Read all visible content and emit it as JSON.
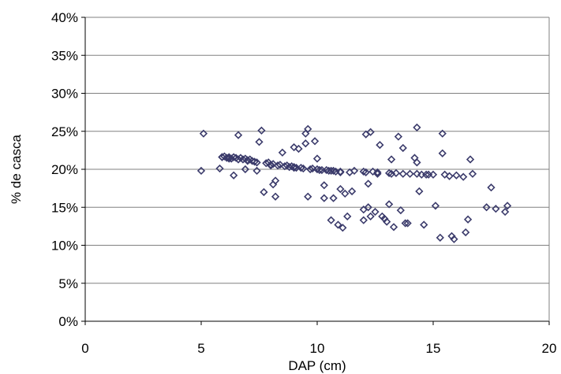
{
  "chart_data": {
    "type": "scatter",
    "title": "",
    "xlabel": "DAP (cm)",
    "ylabel": "% de casca",
    "xlim": [
      0,
      20
    ],
    "ylim": [
      0,
      40
    ],
    "x_ticks": [
      "0",
      "5",
      "10",
      "15",
      "20"
    ],
    "y_ticks": [
      "0%",
      "5%",
      "10%",
      "15%",
      "20%",
      "25%",
      "30%",
      "35%",
      "40%"
    ],
    "grid": true,
    "legend": "none",
    "marker": "diamond-open",
    "marker_color": "#3b3b6b",
    "series": [
      {
        "points": [
          [
            5.0,
            19.8
          ],
          [
            5.1,
            24.7
          ],
          [
            5.8,
            20.1
          ],
          [
            5.9,
            21.6
          ],
          [
            6.0,
            21.7
          ],
          [
            6.1,
            21.5
          ],
          [
            6.2,
            21.6
          ],
          [
            6.3,
            21.4
          ],
          [
            6.4,
            21.6
          ],
          [
            6.4,
            19.2
          ],
          [
            6.5,
            21.5
          ],
          [
            6.6,
            21.3
          ],
          [
            6.6,
            24.5
          ],
          [
            6.7,
            21.5
          ],
          [
            6.8,
            21.3
          ],
          [
            6.9,
            21.4
          ],
          [
            6.9,
            20.0
          ],
          [
            7.0,
            21.2
          ],
          [
            7.1,
            21.3
          ],
          [
            7.2,
            21.1
          ],
          [
            7.3,
            21.0
          ],
          [
            7.4,
            20.9
          ],
          [
            7.4,
            19.8
          ],
          [
            7.5,
            23.6
          ],
          [
            7.6,
            25.1
          ],
          [
            7.7,
            17.0
          ],
          [
            7.8,
            20.8
          ],
          [
            7.9,
            20.9
          ],
          [
            8.0,
            20.6
          ],
          [
            8.1,
            18.0
          ],
          [
            8.1,
            20.7
          ],
          [
            8.2,
            18.5
          ],
          [
            8.2,
            16.4
          ],
          [
            8.3,
            20.5
          ],
          [
            8.4,
            20.6
          ],
          [
            8.5,
            22.2
          ],
          [
            8.6,
            20.4
          ],
          [
            8.7,
            20.5
          ],
          [
            8.8,
            20.3
          ],
          [
            8.9,
            20.4
          ],
          [
            9.0,
            22.9
          ],
          [
            9.0,
            20.3
          ],
          [
            9.1,
            20.2
          ],
          [
            9.2,
            22.7
          ],
          [
            9.3,
            20.2
          ],
          [
            9.4,
            20.1
          ],
          [
            9.5,
            24.7
          ],
          [
            9.5,
            23.4
          ],
          [
            9.6,
            25.3
          ],
          [
            9.6,
            16.4
          ],
          [
            9.7,
            20.0
          ],
          [
            9.8,
            20.1
          ],
          [
            9.9,
            23.7
          ],
          [
            10.0,
            21.4
          ],
          [
            10.0,
            20.0
          ],
          [
            10.2,
            19.9
          ],
          [
            10.3,
            16.2
          ],
          [
            10.3,
            17.9
          ],
          [
            10.4,
            19.9
          ],
          [
            10.5,
            19.8
          ],
          [
            10.6,
            13.3
          ],
          [
            10.7,
            16.2
          ],
          [
            10.7,
            19.8
          ],
          [
            10.8,
            19.7
          ],
          [
            10.9,
            12.7
          ],
          [
            11.0,
            19.7
          ],
          [
            11.0,
            17.4
          ],
          [
            11.1,
            12.3
          ],
          [
            11.2,
            16.8
          ],
          [
            11.3,
            13.8
          ],
          [
            11.4,
            19.6
          ],
          [
            11.5,
            17.1
          ],
          [
            11.6,
            19.8
          ],
          [
            12.0,
            19.7
          ],
          [
            12.0,
            14.7
          ],
          [
            12.0,
            13.3
          ],
          [
            12.1,
            19.6
          ],
          [
            12.1,
            24.6
          ],
          [
            12.2,
            15.0
          ],
          [
            12.2,
            18.1
          ],
          [
            12.3,
            24.9
          ],
          [
            12.3,
            13.8
          ],
          [
            12.4,
            19.7
          ],
          [
            12.5,
            14.4
          ],
          [
            12.6,
            19.6
          ],
          [
            12.6,
            19.4
          ],
          [
            12.7,
            23.2
          ],
          [
            12.8,
            13.8
          ],
          [
            12.9,
            13.5
          ],
          [
            13.0,
            13.1
          ],
          [
            13.1,
            15.4
          ],
          [
            13.1,
            19.5
          ],
          [
            13.2,
            21.3
          ],
          [
            13.2,
            19.4
          ],
          [
            13.3,
            12.4
          ],
          [
            13.4,
            19.5
          ],
          [
            13.5,
            24.3
          ],
          [
            13.6,
            14.6
          ],
          [
            13.7,
            22.8
          ],
          [
            13.7,
            19.4
          ],
          [
            13.8,
            12.9
          ],
          [
            13.9,
            12.9
          ],
          [
            14.0,
            19.4
          ],
          [
            14.2,
            21.5
          ],
          [
            14.3,
            25.5
          ],
          [
            14.3,
            20.9
          ],
          [
            14.3,
            19.4
          ],
          [
            14.4,
            17.1
          ],
          [
            14.5,
            19.3
          ],
          [
            14.6,
            12.7
          ],
          [
            14.7,
            19.3
          ],
          [
            14.8,
            19.3
          ],
          [
            15.0,
            19.3
          ],
          [
            15.1,
            15.2
          ],
          [
            15.3,
            11.0
          ],
          [
            15.4,
            22.1
          ],
          [
            15.4,
            24.7
          ],
          [
            15.5,
            19.3
          ],
          [
            15.7,
            19.1
          ],
          [
            15.8,
            11.2
          ],
          [
            15.9,
            10.8
          ],
          [
            16.0,
            19.2
          ],
          [
            16.3,
            19.0
          ],
          [
            16.4,
            11.7
          ],
          [
            16.5,
            13.4
          ],
          [
            16.6,
            21.3
          ],
          [
            16.7,
            19.4
          ],
          [
            17.3,
            15.0
          ],
          [
            17.5,
            17.6
          ],
          [
            17.7,
            14.8
          ],
          [
            18.1,
            14.4
          ],
          [
            18.2,
            15.2
          ],
          [
            5.9,
            21.6
          ],
          [
            6.2,
            21.4
          ],
          [
            7.0,
            21.1
          ],
          [
            8.0,
            20.5
          ],
          [
            9.0,
            20.2
          ],
          [
            10.1,
            19.9
          ],
          [
            10.6,
            19.8
          ],
          [
            11.0,
            19.6
          ]
        ]
      }
    ]
  }
}
